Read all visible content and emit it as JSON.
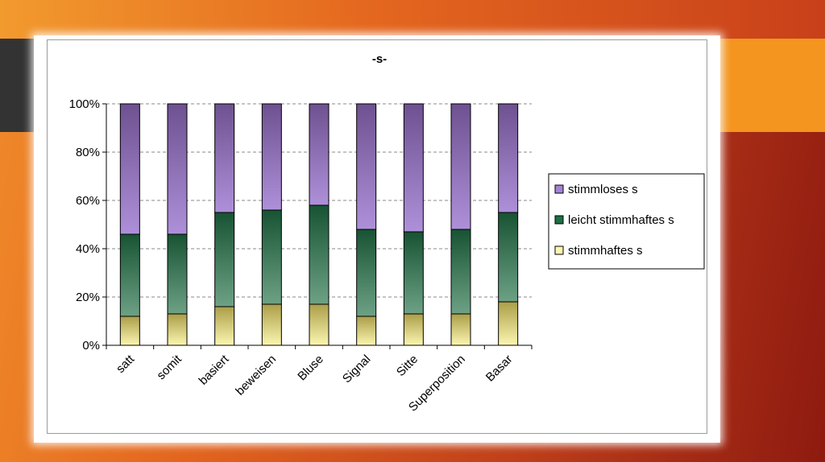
{
  "chart_data": {
    "type": "bar",
    "stacked": true,
    "percent": true,
    "title": "-s-",
    "categories": [
      "satt",
      "somit",
      "basiert",
      "beweisen",
      "Bluse",
      "Signal",
      "Sitte",
      "Superposition",
      "Basar"
    ],
    "series": [
      {
        "name": "stimmhaftes s",
        "color": "#fbf6b0",
        "values": [
          12,
          13,
          16,
          17,
          17,
          12,
          13,
          13,
          18
        ]
      },
      {
        "name": "leicht stimmhaftes s",
        "color": "#1e6f44",
        "values": [
          34,
          33,
          39,
          39,
          41,
          36,
          34,
          35,
          37
        ]
      },
      {
        "name": "stimmloses s",
        "color": "#a584d6",
        "values": [
          54,
          54,
          45,
          44,
          42,
          52,
          53,
          52,
          45
        ]
      }
    ],
    "yticks": [
      "0%",
      "20%",
      "40%",
      "60%",
      "80%",
      "100%"
    ],
    "ylim": [
      0,
      100
    ],
    "grid": "horizontal-dashed",
    "legend_position": "right",
    "legend_order": [
      "stimmloses s",
      "leicht stimmhaftes s",
      "stimmhaftes s"
    ]
  }
}
